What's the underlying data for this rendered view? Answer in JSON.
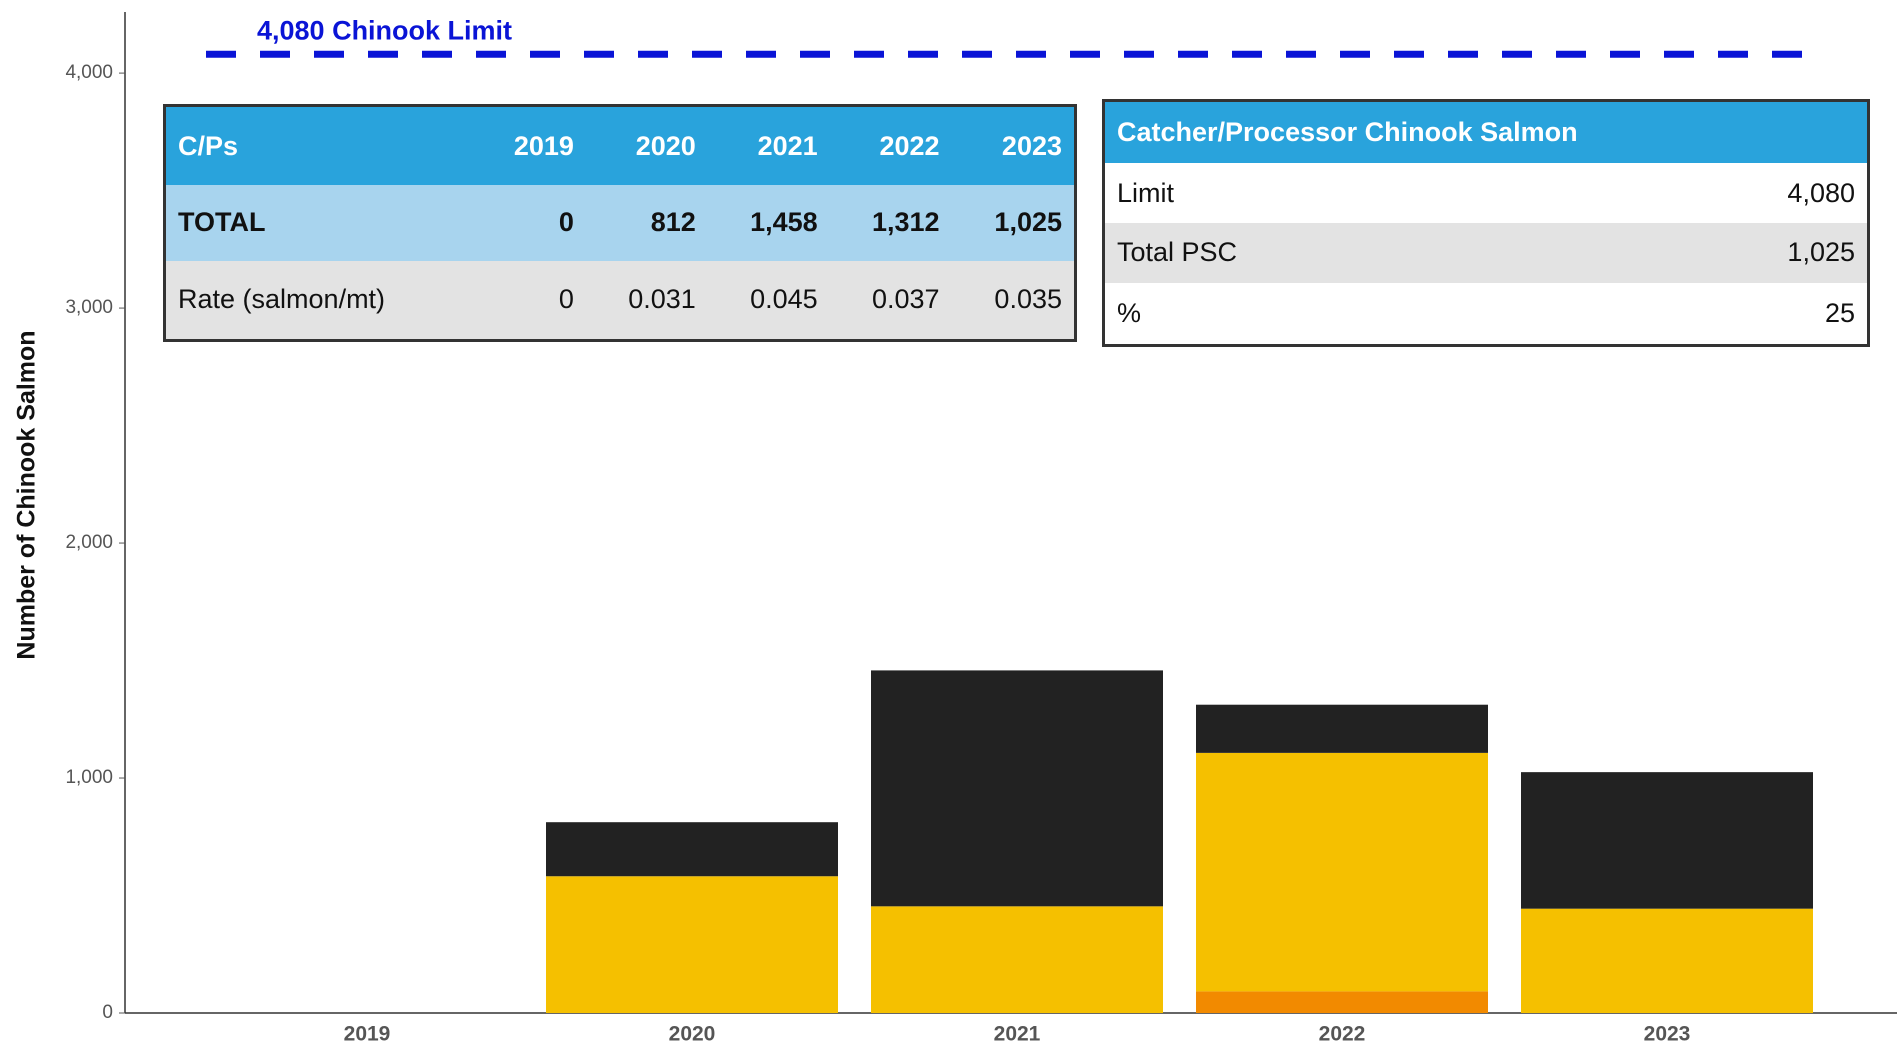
{
  "chart_data": {
    "type": "stacked_bar",
    "ylabel": "Number of Chinook Salmon",
    "categories": [
      "2019",
      "2020",
      "2021",
      "2022",
      "2023"
    ],
    "series": [
      {
        "color": "#f28a00",
        "values": [
          0,
          0,
          0,
          92,
          0
        ]
      },
      {
        "color": "#f5c000",
        "values": [
          0,
          582,
          454,
          1015,
          444
        ]
      },
      {
        "color": "#222222",
        "values": [
          0,
          230,
          1004,
          205,
          581
        ]
      }
    ],
    "ylim": [
      0,
      4260
    ],
    "yticks": [
      0,
      {
        "value": 1000,
        "label": "1,000"
      },
      {
        "value": 2000,
        "label": "2,000"
      },
      {
        "value": 3000,
        "label": "3,000"
      },
      {
        "value": 4000,
        "label": "4,000"
      }
    ],
    "limit": {
      "value": 4080,
      "label": "4,080 Chinook Limit",
      "color": "#0a14d6"
    }
  },
  "table_cp": {
    "header": [
      "C/Ps",
      "2019",
      "2020",
      "2021",
      "2022",
      "2023"
    ],
    "rows": [
      [
        "TOTAL",
        "0",
        "812",
        "1,458",
        "1,312",
        "1,025"
      ],
      [
        "Rate (salmon/mt)",
        "0",
        "0.031",
        "0.045",
        "0.037",
        "0.035"
      ]
    ]
  },
  "table_summary": {
    "title": "Catcher/Processor Chinook Salmon",
    "rows": [
      [
        "Limit",
        "4,080"
      ],
      [
        "Total PSC",
        "1,025"
      ],
      [
        "%",
        "25"
      ]
    ]
  }
}
